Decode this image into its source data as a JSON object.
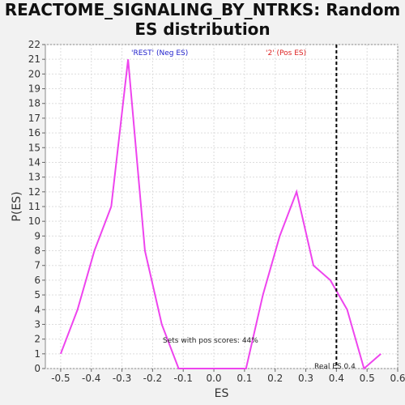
{
  "chart_data": {
    "type": "line",
    "title_lines": [
      "REACTOME_SIGNALING_BY_NTRKS: Random",
      "ES distribution"
    ],
    "xlabel": "ES",
    "ylabel": "P(ES)",
    "xlim": [
      -0.55,
      0.6
    ],
    "ylim": [
      0,
      22
    ],
    "xticks": [
      -0.5,
      -0.4,
      -0.3,
      -0.2,
      -0.1,
      0.0,
      0.1,
      0.2,
      0.3,
      0.4,
      0.5,
      0.6
    ],
    "xtick_labels": [
      "-0.5",
      "-0.4",
      "-0.3",
      "-0.2",
      "-0.1",
      "0.0",
      "0.1",
      "0.2",
      "0.3",
      "0.4",
      "0.5",
      "0.6"
    ],
    "yticks": [
      0,
      1,
      2,
      3,
      4,
      5,
      6,
      7,
      8,
      9,
      10,
      11,
      12,
      13,
      14,
      15,
      16,
      17,
      18,
      19,
      20,
      21,
      22
    ],
    "grid": true,
    "series": [
      {
        "color": "#ee44ee",
        "x": [
          -0.5,
          -0.445,
          -0.39,
          -0.335,
          -0.28,
          -0.225,
          -0.17,
          -0.115,
          -0.06,
          -0.005,
          0.05,
          0.105,
          0.16,
          0.215,
          0.27,
          0.325,
          0.38,
          0.435,
          0.49,
          0.545
        ],
        "y": [
          1,
          4,
          8,
          11,
          21,
          8,
          3,
          0,
          0,
          0,
          0,
          0,
          5,
          9,
          12,
          7,
          6,
          4,
          0,
          1
        ]
      }
    ],
    "real_es": 0.4,
    "annotations": {
      "neg_label": "'REST' (Neg ES)",
      "pos_label": "'2' (Pos ES)",
      "pos_scores": "Sets with pos scores: 44%",
      "real_es_label": "Real ES 0.4"
    },
    "colors": {
      "neg_label": "#2222cc",
      "pos_label": "#dd2222",
      "line": "#ee44ee"
    }
  }
}
